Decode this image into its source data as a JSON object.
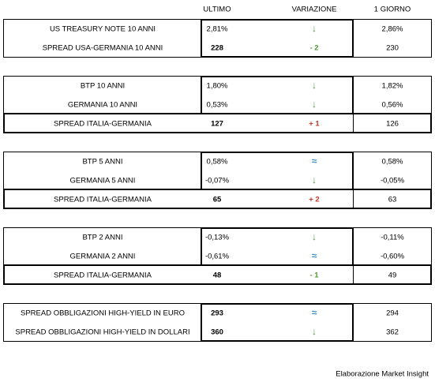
{
  "header": {
    "columns": [
      "ULTIMO",
      "VARIAZIONE",
      "1 GIORNO"
    ]
  },
  "groups": [
    {
      "rows": [
        [
          "US TREASURY NOTE 10 ANNI",
          "2,81%",
          "↓",
          "2,86%"
        ],
        [
          "SPREAD USA-GERMANIA 10 ANNI",
          "228",
          "- 2",
          "230"
        ]
      ]
    },
    {
      "rows": [
        [
          "BTP 10 ANNI",
          "1,80%",
          "↓",
          "1,82%"
        ],
        [
          "GERMANIA 10 ANNI",
          "0,53%",
          "↓",
          "0,56%"
        ],
        [
          "SPREAD ITALIA-GERMANIA",
          "127",
          "+ 1",
          "126"
        ]
      ]
    },
    {
      "rows": [
        [
          "BTP 5 ANNI",
          "0,58%",
          "≈",
          "0,58%"
        ],
        [
          "GERMANIA 5 ANNI",
          "-0,07%",
          "↓",
          "-0,05%"
        ],
        [
          "SPREAD ITALIA-GERMANIA",
          "65",
          "+ 2",
          "63"
        ]
      ]
    },
    {
      "rows": [
        [
          "BTP 2 ANNI",
          "-0,13%",
          "↓",
          "-0,11%"
        ],
        [
          "GERMANIA 2 ANNI",
          "-0,61%",
          "≈",
          "-0,60%"
        ],
        [
          "SPREAD ITALIA-GERMANIA",
          "48",
          "- 1",
          "49"
        ]
      ]
    },
    {
      "rows": [
        [
          "SPREAD OBBLIGAZIONI HIGH-YIELD IN EURO",
          "293",
          "≈",
          "294"
        ],
        [
          "SPREAD OBBLIGAZIONI HIGH-YIELD IN DOLLARI",
          "360",
          "↓",
          "362"
        ]
      ]
    }
  ],
  "footer": "Elaborazione Market Insight"
}
